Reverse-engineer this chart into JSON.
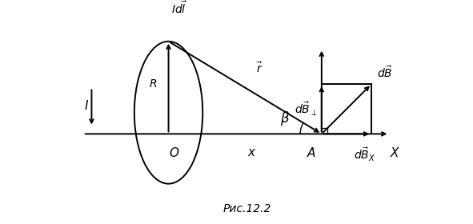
{
  "fig_width": 5.91,
  "fig_height": 2.8,
  "dpi": 100,
  "bg_color": "#ffffff",
  "caption": "Рис.12.2"
}
